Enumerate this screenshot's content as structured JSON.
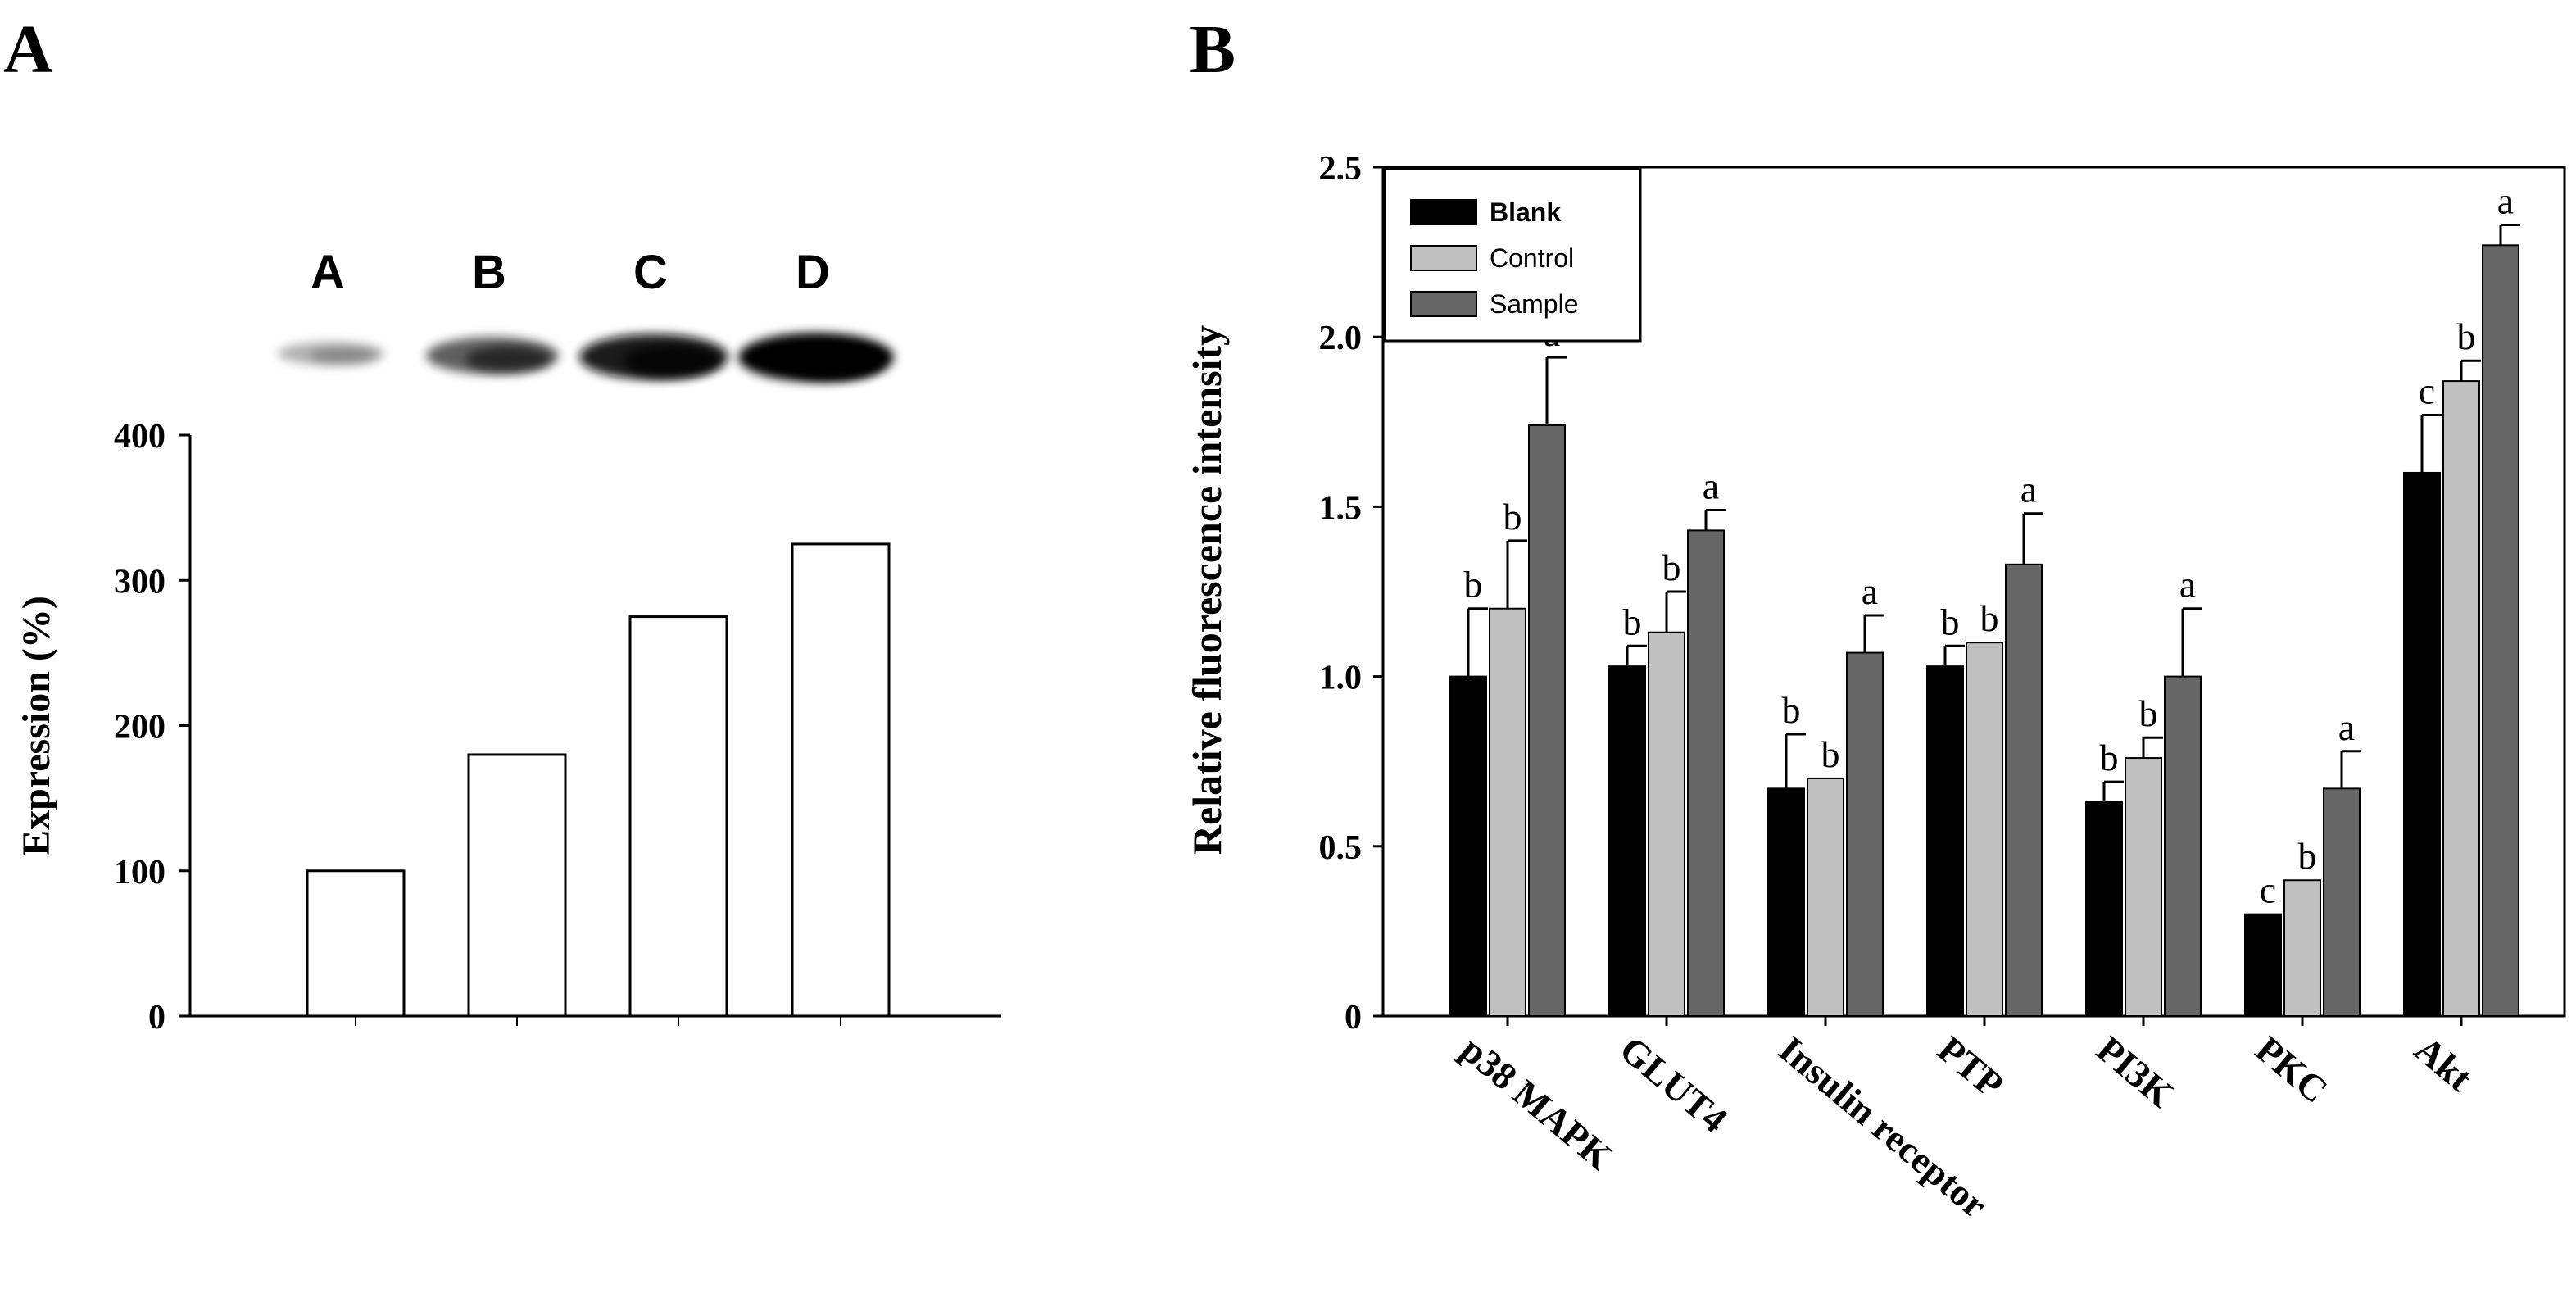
{
  "panels": {
    "a_letter": "A",
    "b_letter": "B"
  },
  "chart_data": [
    {
      "type": "bar",
      "panel": "A",
      "title": "",
      "xlabel": "",
      "ylabel": "Expression (%)",
      "ylim": [
        0,
        400
      ],
      "yticks": [
        0,
        100,
        200,
        300,
        400
      ],
      "ytick_labels": [
        "0",
        "100",
        "200",
        "300",
        "400"
      ],
      "categories": [
        "A",
        "B",
        "C",
        "D"
      ],
      "lane_labels": [
        "A",
        "B",
        "C",
        "D"
      ],
      "values": [
        100,
        180,
        275,
        325
      ],
      "blot_intensity": [
        0.25,
        0.65,
        0.9,
        1.0
      ],
      "colors": {
        "bar_fill": "#ffffff",
        "bar_stroke": "#000000"
      }
    },
    {
      "type": "bar",
      "panel": "B",
      "title": "",
      "xlabel": "",
      "ylabel": "Relative fluorescence intensity",
      "ylim": [
        0,
        2.5
      ],
      "yticks": [
        0,
        0.5,
        1.0,
        1.5,
        2.0,
        2.5
      ],
      "ytick_labels": [
        "0",
        "0.5",
        "1.0",
        "1.5",
        "2.0",
        "2.5"
      ],
      "categories": [
        "p38 MAPK",
        "GLUT4",
        "Insulin receptor",
        "PTP",
        "PI3K",
        "PKC",
        "Akt"
      ],
      "legend_position": "top-left",
      "series": [
        {
          "name": "Blank",
          "color": "#000000",
          "values": [
            1.0,
            1.03,
            0.67,
            1.03,
            0.63,
            0.3,
            1.6
          ],
          "errors": [
            0.2,
            0.06,
            0.16,
            0.06,
            0.06,
            0.0,
            0.17
          ],
          "letters": [
            "b",
            "b",
            "b",
            "b",
            "b",
            "c",
            "c"
          ]
        },
        {
          "name": "Control",
          "color": "#c0c0c0",
          "values": [
            1.2,
            1.13,
            0.7,
            1.1,
            0.76,
            0.4,
            1.87
          ],
          "errors": [
            0.2,
            0.12,
            0.0,
            0.0,
            0.06,
            0.0,
            0.06
          ],
          "letters": [
            "b",
            "b",
            "b",
            "b",
            "b",
            "b",
            "b"
          ]
        },
        {
          "name": "Sample",
          "color": "#666666",
          "values": [
            1.74,
            1.43,
            1.07,
            1.33,
            1.0,
            0.67,
            2.27
          ],
          "errors": [
            0.2,
            0.06,
            0.11,
            0.15,
            0.2,
            0.11,
            0.06
          ],
          "letters": [
            "a",
            "a",
            "a",
            "a",
            "a",
            "a",
            "a"
          ]
        }
      ]
    }
  ]
}
